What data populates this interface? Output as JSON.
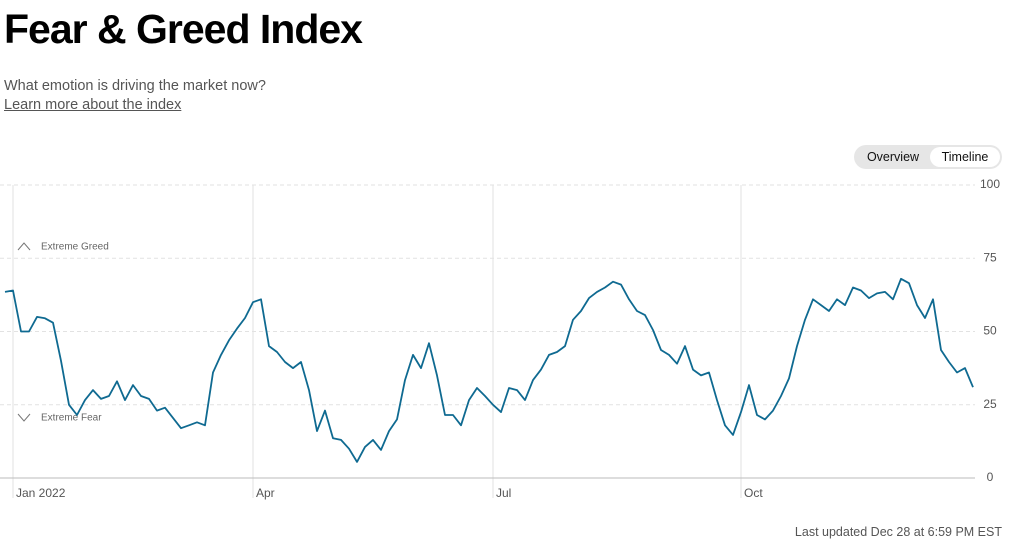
{
  "subtitle": "What emotion is driving the market now?",
  "link": "Learn more about the index",
  "toggle": [
    "Overview",
    "Timeline"
  ],
  "last_updated": "Last updated Dec 28 at 6:59 PM EST",
  "chart_data": {
    "type": "line",
    "title": "Fear & Greed Index",
    "annotations": [
      "Extreme Greed",
      "Extreme Fear"
    ],
    "color": "#0f6a91",
    "values": [
      63.5,
      64,
      50,
      50,
      55,
      54.5,
      53,
      40,
      25,
      21.5,
      26.6,
      30,
      27,
      28,
      33,
      26.6,
      31.7,
      28,
      27,
      23,
      24,
      20.5,
      17,
      18,
      19,
      18,
      36,
      42,
      47,
      51,
      54.6,
      60,
      61,
      45,
      43,
      39.6,
      37.5,
      39.6,
      30,
      16,
      23,
      13.6,
      13,
      10,
      5.5,
      10.6,
      13,
      9.6,
      16,
      20,
      33.4,
      42,
      37.5,
      46,
      35,
      21.5,
      21.5,
      18,
      26.6,
      30.7,
      28,
      25,
      22.5,
      30.7,
      30,
      26.6,
      33.4,
      37,
      42,
      43,
      45,
      54,
      57,
      61.4,
      63.5,
      65,
      67,
      66,
      61,
      57,
      55.6,
      50.5,
      43.7,
      42,
      39,
      45,
      37,
      35,
      36,
      26.6,
      18,
      14.7,
      22.5,
      31.7,
      21.5,
      20,
      23,
      28,
      34,
      45,
      54,
      61,
      59,
      57,
      61,
      59,
      65,
      64,
      61.4,
      63,
      63.5,
      61,
      68,
      66.5,
      59,
      54.6,
      61,
      43.7,
      39.6,
      36,
      37.5,
      31
    ],
    "xlim": [
      0,
      121
    ],
    "xticks": [
      {
        "value": 1,
        "label": "Jan 2022"
      },
      {
        "value": 31,
        "label": "Apr"
      },
      {
        "value": 61,
        "label": "Jul"
      },
      {
        "value": 92,
        "label": "Oct"
      }
    ],
    "ylim": [
      0,
      100
    ],
    "yticks": [
      0,
      25,
      50,
      75,
      100
    ],
    "grid": true
  }
}
